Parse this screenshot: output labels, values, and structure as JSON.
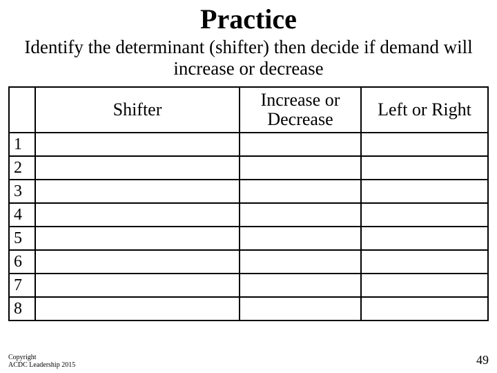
{
  "title": "Practice",
  "subtitle": "Identify the determinant (shifter) then decide if demand will increase or decrease",
  "table": {
    "headers": {
      "blank": "",
      "shifter": "Shifter",
      "inc_dec": "Increase or Decrease",
      "left_right": "Left or Right"
    },
    "rows": [
      {
        "num": "1",
        "shifter": "",
        "inc_dec": "",
        "left_right": ""
      },
      {
        "num": "2",
        "shifter": "",
        "inc_dec": "",
        "left_right": ""
      },
      {
        "num": "3",
        "shifter": "",
        "inc_dec": "",
        "left_right": ""
      },
      {
        "num": "4",
        "shifter": "",
        "inc_dec": "",
        "left_right": ""
      },
      {
        "num": "5",
        "shifter": "",
        "inc_dec": "",
        "left_right": ""
      },
      {
        "num": "6",
        "shifter": "",
        "inc_dec": "",
        "left_right": ""
      },
      {
        "num": "7",
        "shifter": "",
        "inc_dec": "",
        "left_right": ""
      },
      {
        "num": "8",
        "shifter": "",
        "inc_dec": "",
        "left_right": ""
      }
    ]
  },
  "footer": {
    "line1": "Copyright",
    "line2": "ACDC Leadership 2015"
  },
  "page_number": "49",
  "colors": {
    "background": "#ffffff",
    "text": "#000000",
    "border": "#000000"
  }
}
